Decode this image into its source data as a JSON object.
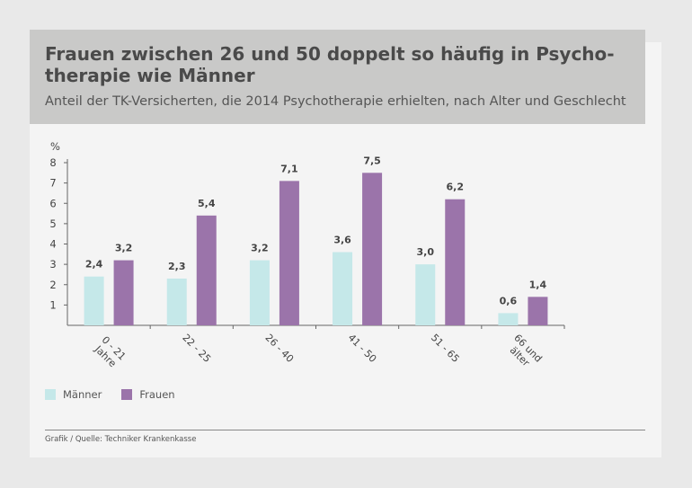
{
  "header": {
    "title": "Frauen zwischen 26 und 50 doppelt so häufig in Psycho-therapie wie Männer",
    "subtitle": "Anteil der TK-Versicherten, die 2014 Psychotherapie erhielten, nach Alter und Geschlecht"
  },
  "legend": {
    "items": [
      {
        "label": "Männer",
        "color": "#c5e8e9"
      },
      {
        "label": "Frauen",
        "color": "#9b74aa"
      }
    ]
  },
  "source": "Grafik / Quelle: Techniker Krankenkasse",
  "chart_data": {
    "type": "bar",
    "ylabel": "%",
    "ylim": [
      0,
      8
    ],
    "yticks": [
      1,
      2,
      3,
      4,
      5,
      6,
      7,
      8
    ],
    "categories": [
      "0 - 21\nJahre",
      "22 - 25",
      "26 - 40",
      "41 - 50",
      "51 - 65",
      "66 und\nälter"
    ],
    "series": [
      {
        "name": "Männer",
        "color": "#c5e8e9",
        "values": [
          2.4,
          2.3,
          3.2,
          3.6,
          3.0,
          0.6
        ],
        "labels": [
          "2,4",
          "2,3",
          "3,2",
          "3,6",
          "3,0",
          "0,6"
        ]
      },
      {
        "name": "Frauen",
        "color": "#9b74aa",
        "values": [
          3.2,
          5.4,
          7.1,
          7.5,
          6.2,
          1.4
        ],
        "labels": [
          "3,2",
          "5,4",
          "7,1",
          "7,5",
          "6,2",
          "1,4"
        ]
      }
    ]
  }
}
